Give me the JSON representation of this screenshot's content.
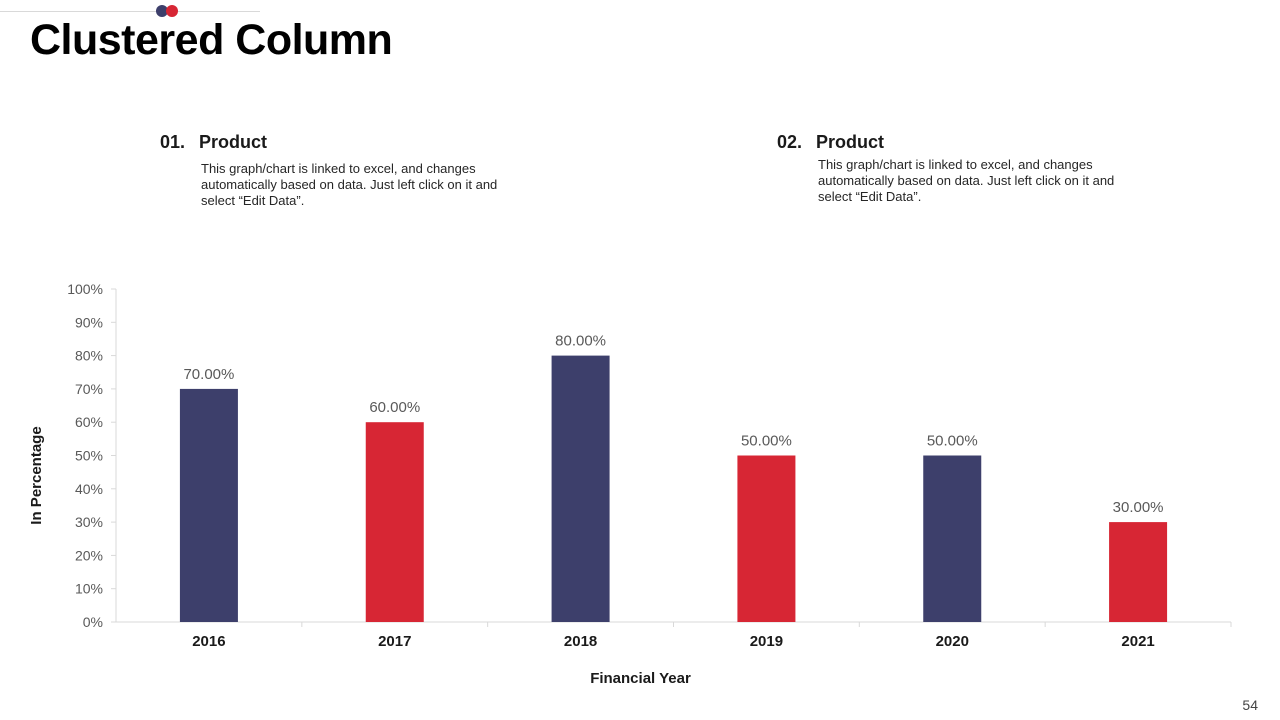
{
  "title": "Clustered Column",
  "page_number": "54",
  "colors": {
    "navy": "#3d3f6b",
    "red": "#d72634",
    "axis": "#d9d9d9",
    "label": "#595959"
  },
  "products": [
    {
      "number": "01.",
      "name": "Product",
      "description": "This graph/chart is linked to excel, and changes automatically based on data. Just left click on it and select “Edit Data”."
    },
    {
      "number": "02.",
      "name": "Product",
      "description": "This graph/chart is linked to excel, and changes automatically based on data. Just left click on it and select “Edit Data”."
    }
  ],
  "chart_data": {
    "type": "bar",
    "title": "",
    "xlabel": "Financial Year",
    "ylabel": "In Percentage",
    "categories": [
      "2016",
      "2017",
      "2018",
      "2019",
      "2020",
      "2021"
    ],
    "values": [
      70,
      60,
      80,
      50,
      50,
      30
    ],
    "data_labels": [
      "70.00%",
      "60.00%",
      "80.00%",
      "50.00%",
      "50.00%",
      "30.00%"
    ],
    "bar_colors": [
      "#3d3f6b",
      "#d72634",
      "#3d3f6b",
      "#d72634",
      "#3d3f6b",
      "#d72634"
    ],
    "ylim": [
      0,
      100
    ],
    "yticks": [
      0,
      10,
      20,
      30,
      40,
      50,
      60,
      70,
      80,
      90,
      100
    ],
    "ytick_labels": [
      "0%",
      "10%",
      "20%",
      "30%",
      "40%",
      "50%",
      "60%",
      "70%",
      "80%",
      "90%",
      "100%"
    ],
    "grid": false,
    "legend": "none"
  }
}
